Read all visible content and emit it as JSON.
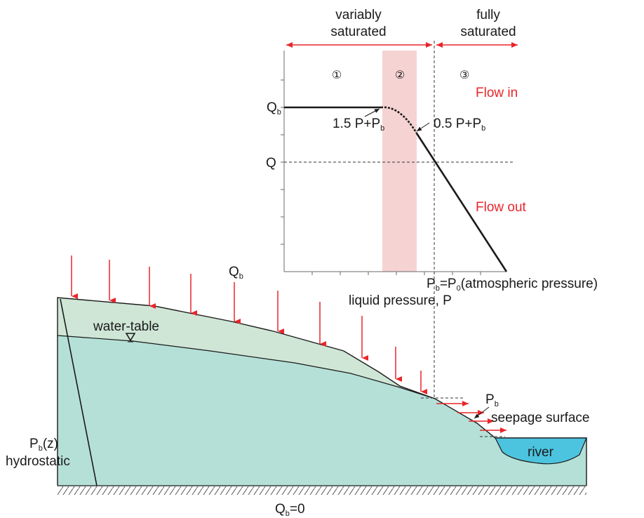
{
  "zones": {
    "variably_line1": "variably",
    "variably_line2": "saturated",
    "fully_line1": "fully",
    "fully_line2": "saturated",
    "zone1": "①",
    "zone2": "②",
    "zone3": "③"
  },
  "graph": {
    "flow_in": "Flow in",
    "flow_out": "Flow out",
    "qb": "Q",
    "qb_sub": "b",
    "q": "Q",
    "pt1_main": "1.5 P+P",
    "pt1_sub": "b",
    "pt2_main": "0.5 P+P",
    "pt2_sub": "b",
    "pb_p": "P",
    "pb_sub": "b",
    "pb_eq": "=P",
    "p0_sub": "0",
    "pb_tail": "(atmospheric pressure)",
    "xlabel": "liquid pressure, P"
  },
  "section": {
    "qb_top": "Q",
    "qb_top_sub": "b",
    "water_table": "water-table",
    "pb_right": "P",
    "pb_right_sub": "b",
    "seepage": "seepage surface",
    "river": "river",
    "pbz_p": "P",
    "pbz_sub": "b",
    "pbz_tail": "(z)",
    "hydrostatic": "hydrostatic",
    "qb_bottom": "Q",
    "qb_bottom_sub": "b",
    "qb_bottom_tail": "=0"
  },
  "colors": {
    "red": "#e8262a",
    "pink_band": "#f6d3d3",
    "unsat_green": "#cfe6d6",
    "sat_green": "#b5e0d7",
    "river_blue": "#4cc3df",
    "ink": "#1a1a1a"
  }
}
